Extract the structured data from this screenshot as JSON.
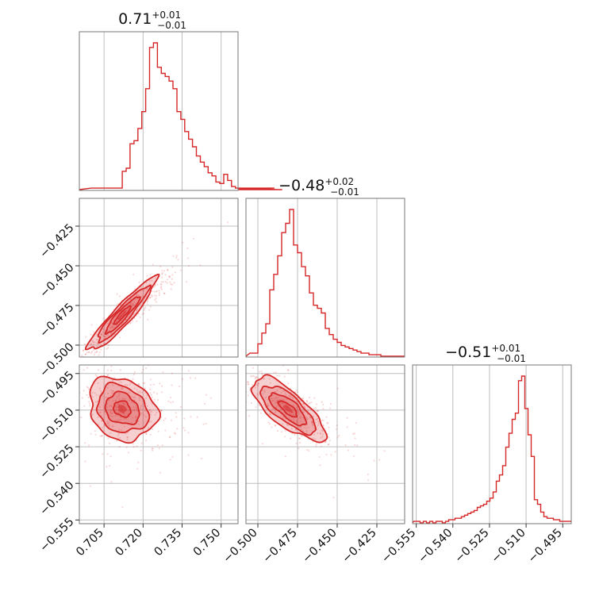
{
  "chart_data": {
    "type": "corner",
    "color": "#d62728",
    "grid": true,
    "parameters": [
      {
        "title": {
          "main": "0.71",
          "plus": "+0.01",
          "minus": "−0.01"
        },
        "median": 0.712,
        "sigma": 0.0065,
        "range": [
          0.6955,
          0.7565
        ],
        "ticks": [
          0.705,
          0.72,
          0.735,
          0.75
        ],
        "tick_labels": [
          "0.705",
          "0.720",
          "0.735",
          "0.750"
        ]
      },
      {
        "title": {
          "main": "−0.48",
          "plus": "+0.02",
          "minus": "−0.01"
        },
        "median": -0.481,
        "sigma": 0.0115,
        "range": [
          -0.5075,
          -0.4075
        ],
        "ticks": [
          -0.5,
          -0.475,
          -0.45,
          -0.425
        ],
        "tick_labels": [
          "−0.500",
          "−0.475",
          "−0.450",
          "−0.425"
        ]
      },
      {
        "title": {
          "main": "−0.51",
          "plus": "+0.01",
          "minus": "−0.01"
        },
        "median": -0.5095,
        "sigma": 0.0065,
        "range": [
          -0.5565,
          -0.4915
        ],
        "ticks": [
          -0.555,
          -0.54,
          -0.525,
          -0.51,
          -0.495
        ],
        "tick_labels": [
          "−0.555",
          "−0.540",
          "−0.525",
          "−0.510",
          "−0.495"
        ]
      }
    ],
    "histograms": [
      {
        "bin_lo": 0.7,
        "bin_width": 0.0015,
        "counts": [
          0.01,
          0.01,
          0.01,
          0.01,
          0.01,
          0.01,
          0.01,
          0.01,
          0.12,
          0.14,
          0.3,
          0.32,
          0.4,
          0.51,
          0.66,
          0.93,
          0.96,
          0.8,
          0.76,
          0.74,
          0.71,
          0.66,
          0.51,
          0.46,
          0.38,
          0.33,
          0.28,
          0.22,
          0.18,
          0.15,
          0.11,
          0.09,
          0.05,
          0.04,
          0.1,
          0.06,
          0.02,
          0.01,
          0.01,
          0.01,
          0.0,
          0.01,
          0.0,
          0.0,
          0.01,
          0.0,
          0.0,
          0.01,
          0.0,
          0.0
        ]
      },
      {
        "bin_lo": -0.505,
        "bin_width": 0.0025,
        "counts": [
          0.02,
          0.02,
          0.08,
          0.15,
          0.21,
          0.43,
          0.53,
          0.65,
          0.8,
          0.86,
          0.95,
          0.72,
          0.67,
          0.58,
          0.52,
          0.41,
          0.33,
          0.31,
          0.28,
          0.18,
          0.14,
          0.11,
          0.09,
          0.07,
          0.06,
          0.05,
          0.04,
          0.03,
          0.02,
          0.02,
          0.01,
          0.01,
          0.01,
          0.0,
          0.0,
          0.0,
          0.0,
          0.0,
          0.0,
          0.0
        ]
      },
      {
        "bin_lo": -0.556,
        "bin_width": 0.0013,
        "counts": [
          0.01,
          0.01,
          0.0,
          0.01,
          0.0,
          0.01,
          0.0,
          0.01,
          0.01,
          0.0,
          0.01,
          0.02,
          0.02,
          0.03,
          0.03,
          0.04,
          0.05,
          0.06,
          0.07,
          0.08,
          0.1,
          0.11,
          0.12,
          0.14,
          0.16,
          0.2,
          0.27,
          0.31,
          0.37,
          0.49,
          0.58,
          0.67,
          0.71,
          0.92,
          0.95,
          0.74,
          0.57,
          0.43,
          0.15,
          0.12,
          0.07,
          0.04,
          0.03,
          0.03,
          0.02,
          0.02,
          0.01,
          0.01,
          0.01,
          0.01
        ]
      }
    ],
    "pairs": [
      {
        "x_param": 0,
        "y_param": 1,
        "correlation": 0.93
      },
      {
        "x_param": 0,
        "y_param": 2,
        "correlation": -0.2
      },
      {
        "x_param": 1,
        "y_param": 2,
        "correlation": -0.75
      }
    ],
    "contour_levels_sigma": [
      0.5,
      1.0,
      1.5,
      2.0
    ]
  }
}
